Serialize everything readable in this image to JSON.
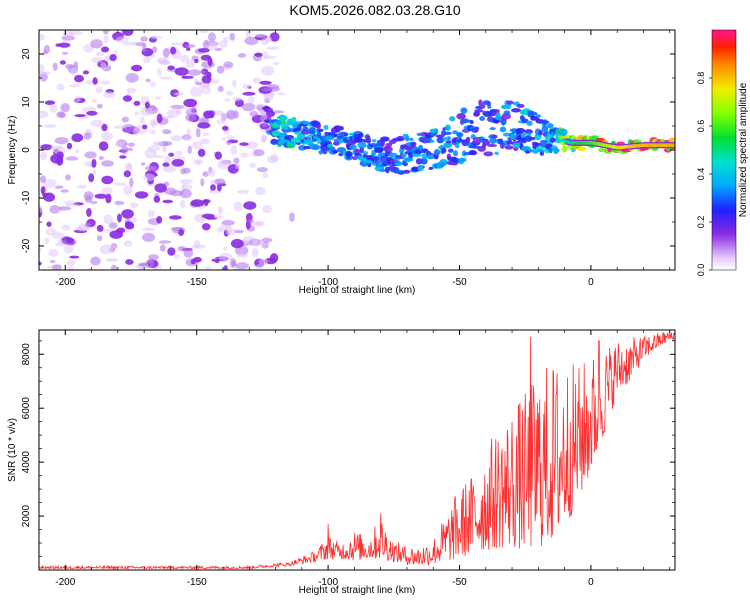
{
  "title": "KOM5.2026.082.03.28.G10",
  "chart_data": [
    {
      "type": "heatmap",
      "name": "spectrogram",
      "xlabel": "Height of straight line (km)",
      "ylabel": "Frequency (Hz)",
      "xlim": [
        -210,
        32
      ],
      "ylim": [
        -25,
        25
      ],
      "xticks": [
        -200,
        -150,
        -100,
        -50,
        0
      ],
      "yticks": [
        -20,
        -10,
        0,
        10,
        20
      ],
      "xtick_labels": [
        "-200",
        "-150",
        "-100",
        "-50",
        "0"
      ],
      "ytick_labels": [
        "-20",
        "-10",
        "0",
        "10",
        "20"
      ],
      "colorbar": {
        "label": "Normalized spectral amplitude",
        "range": [
          0,
          1
        ],
        "ticks": [
          0.0,
          0.2,
          0.4,
          0.6,
          0.8
        ],
        "tick_labels": [
          "0.0",
          "0.2",
          "0.4",
          "0.6",
          "0.8"
        ]
      },
      "noise_region": {
        "x": [
          -210,
          -120
        ],
        "y": [
          -25,
          25
        ],
        "amplitude": [
          0.0,
          0.12
        ]
      },
      "signal_track": [
        {
          "x": -125,
          "f": 6,
          "spread": 4,
          "amp": 0.08
        },
        {
          "x": -118,
          "f": 4,
          "spread": 3,
          "amp": 0.45
        },
        {
          "x": -108,
          "f": 3,
          "spread": 3,
          "amp": 0.3
        },
        {
          "x": -98,
          "f": 2,
          "spread": 3,
          "amp": 0.35
        },
        {
          "x": -90,
          "f": 1,
          "spread": 3,
          "amp": 0.3
        },
        {
          "x": -82,
          "f": -1,
          "spread": 3,
          "amp": 0.3
        },
        {
          "x": -72,
          "f": -1,
          "spread": 4,
          "amp": 0.28
        },
        {
          "x": -60,
          "f": 0,
          "spread": 4,
          "amp": 0.3
        },
        {
          "x": -45,
          "f": 4,
          "spread": 6,
          "amp": 0.25
        },
        {
          "x": -30,
          "f": 5,
          "spread": 5,
          "amp": 0.3
        },
        {
          "x": -18,
          "f": 3,
          "spread": 4,
          "amp": 0.35
        },
        {
          "x": -8,
          "f": 1.5,
          "spread": 1.5,
          "amp": 0.6
        },
        {
          "x": 0,
          "f": 1.5,
          "spread": 1.2,
          "amp": 0.7
        },
        {
          "x": 10,
          "f": 0.5,
          "spread": 1,
          "amp": 0.9
        },
        {
          "x": 20,
          "f": 1,
          "spread": 1,
          "amp": 0.95
        },
        {
          "x": 30,
          "f": 1,
          "spread": 1,
          "amp": 0.95
        }
      ]
    },
    {
      "type": "line",
      "name": "snr",
      "xlabel": "Height of straight line (km)",
      "ylabel": "SNR (10 * v/v)",
      "xlim": [
        -210,
        32
      ],
      "ylim": [
        0,
        8900
      ],
      "xticks": [
        -200,
        -150,
        -100,
        -50,
        0
      ],
      "yticks": [
        2000,
        4000,
        6000,
        8000
      ],
      "xtick_labels": [
        "-200",
        "-150",
        "-100",
        "-50",
        "0"
      ],
      "ytick_labels": [
        "2000",
        "4000",
        "6000",
        "8000"
      ],
      "series": [
        {
          "name": "SNR",
          "color": "#ff3030",
          "envelope_x": [
            -210,
            -130,
            -115,
            -105,
            -100,
            -95,
            -90,
            -85,
            -80,
            -75,
            -70,
            -65,
            -60,
            -55,
            -50,
            -45,
            -40,
            -35,
            -30,
            -25,
            -20,
            -15,
            -10,
            -5,
            0,
            5,
            10,
            15,
            20,
            25,
            30,
            32
          ],
          "envelope_min": [
            50,
            50,
            150,
            300,
            400,
            400,
            350,
            400,
            400,
            300,
            200,
            150,
            200,
            300,
            400,
            600,
            700,
            800,
            800,
            700,
            800,
            1000,
            1500,
            2500,
            3500,
            5000,
            6500,
            7000,
            7800,
            8200,
            8500,
            8500
          ],
          "envelope_max": [
            150,
            150,
            300,
            700,
            1300,
            1000,
            1500,
            1200,
            2000,
            1100,
            900,
            900,
            1200,
            2100,
            3100,
            3600,
            4600,
            5400,
            6100,
            6600,
            7500,
            7800,
            7900,
            7600,
            8000,
            8300,
            8600,
            8600,
            8700,
            8800,
            8900,
            8900
          ],
          "peaks": [
            {
              "x": -100,
              "y": 1700
            },
            {
              "x": -80,
              "y": 2100
            },
            {
              "x": -23,
              "y": 8650
            },
            {
              "x": 3,
              "y": 8500
            },
            {
              "x": 30,
              "y": 8900
            }
          ]
        }
      ]
    }
  ]
}
